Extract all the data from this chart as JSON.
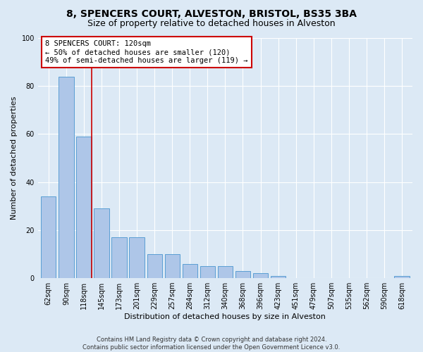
{
  "title_line1": "8, SPENCERS COURT, ALVESTON, BRISTOL, BS35 3BA",
  "title_line2": "Size of property relative to detached houses in Alveston",
  "xlabel": "Distribution of detached houses by size in Alveston",
  "ylabel": "Number of detached properties",
  "footer_line1": "Contains HM Land Registry data © Crown copyright and database right 2024.",
  "footer_line2": "Contains public sector information licensed under the Open Government Licence v3.0.",
  "categories": [
    "62sqm",
    "90sqm",
    "118sqm",
    "145sqm",
    "173sqm",
    "201sqm",
    "229sqm",
    "257sqm",
    "284sqm",
    "312sqm",
    "340sqm",
    "368sqm",
    "396sqm",
    "423sqm",
    "451sqm",
    "479sqm",
    "507sqm",
    "535sqm",
    "562sqm",
    "590sqm",
    "618sqm"
  ],
  "values": [
    34,
    84,
    59,
    29,
    17,
    17,
    10,
    10,
    6,
    5,
    5,
    3,
    2,
    1,
    0,
    0,
    0,
    0,
    0,
    0,
    1
  ],
  "bar_color": "#aec6e8",
  "bar_edge_color": "#5a9fd4",
  "highlight_bar_index": 2,
  "highlight_line_color": "#cc0000",
  "ylim": [
    0,
    100
  ],
  "yticks": [
    0,
    20,
    40,
    60,
    80,
    100
  ],
  "annotation_text": "8 SPENCERS COURT: 120sqm\n← 50% of detached houses are smaller (120)\n49% of semi-detached houses are larger (119) →",
  "annotation_box_color": "#ffffff",
  "annotation_box_edge_color": "#cc0000",
  "background_color": "#dce9f5",
  "plot_background_color": "#dce9f5",
  "grid_color": "#ffffff",
  "title_fontsize": 10,
  "subtitle_fontsize": 9,
  "axis_label_fontsize": 8,
  "tick_fontsize": 7,
  "footer_fontsize": 6,
  "annotation_fontsize": 7.5
}
